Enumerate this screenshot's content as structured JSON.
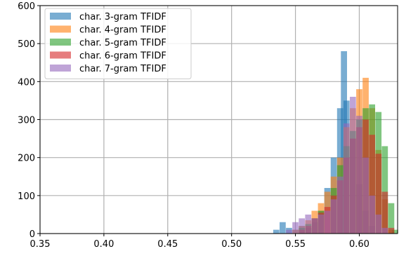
{
  "chart_data": {
    "type": "histogram",
    "title": "",
    "xlabel": "",
    "ylabel": "",
    "xlim": [
      0.35,
      0.63
    ],
    "ylim": [
      0,
      600
    ],
    "x_ticks": [
      "0.35",
      "0.40",
      "0.45",
      "0.50",
      "0.55",
      "0.60"
    ],
    "x_tick_values": [
      0.35,
      0.4,
      0.45,
      0.5,
      0.55,
      0.6
    ],
    "y_ticks": [
      "0",
      "100",
      "200",
      "300",
      "400",
      "500",
      "600"
    ],
    "y_tick_values": [
      0,
      100,
      200,
      300,
      400,
      500,
      600
    ],
    "grid": true,
    "legend_position": "top-left",
    "series": [
      {
        "name": "char. 3-gram TFIDF",
        "color": "#1f77b4",
        "bins": [
          [
            0.535,
            10
          ],
          [
            0.54,
            30
          ],
          [
            0.545,
            15
          ],
          [
            0.55,
            10
          ],
          [
            0.555,
            20
          ],
          [
            0.56,
            15
          ],
          [
            0.565,
            30
          ],
          [
            0.57,
            60
          ],
          [
            0.575,
            120
          ],
          [
            0.58,
            200
          ],
          [
            0.585,
            330
          ],
          [
            0.588,
            480
          ],
          [
            0.59,
            350
          ],
          [
            0.595,
            250
          ],
          [
            0.6,
            130
          ],
          [
            0.605,
            60
          ],
          [
            0.61,
            20
          ]
        ]
      },
      {
        "name": "char. 4-gram TFIDF",
        "color": "#ff7f0e",
        "bins": [
          [
            0.55,
            10
          ],
          [
            0.555,
            20
          ],
          [
            0.56,
            35
          ],
          [
            0.565,
            60
          ],
          [
            0.57,
            80
          ],
          [
            0.575,
            110
          ],
          [
            0.58,
            150
          ],
          [
            0.585,
            200
          ],
          [
            0.59,
            280
          ],
          [
            0.595,
            330
          ],
          [
            0.6,
            380
          ],
          [
            0.605,
            410
          ],
          [
            0.61,
            330
          ],
          [
            0.615,
            220
          ],
          [
            0.62,
            90
          ],
          [
            0.625,
            10
          ]
        ]
      },
      {
        "name": "char. 5-gram TFIDF",
        "color": "#2ca02c",
        "bins": [
          [
            0.555,
            15
          ],
          [
            0.56,
            25
          ],
          [
            0.565,
            40
          ],
          [
            0.57,
            60
          ],
          [
            0.58,
            120
          ],
          [
            0.585,
            180
          ],
          [
            0.59,
            230
          ],
          [
            0.595,
            270
          ],
          [
            0.6,
            300
          ],
          [
            0.605,
            330
          ],
          [
            0.61,
            340
          ],
          [
            0.615,
            320
          ],
          [
            0.62,
            230
          ],
          [
            0.625,
            80
          ],
          [
            0.628,
            10
          ]
        ]
      },
      {
        "name": "char. 6-gram TFIDF",
        "color": "#d62728",
        "bins": [
          [
            0.555,
            10
          ],
          [
            0.56,
            20
          ],
          [
            0.565,
            40
          ],
          [
            0.57,
            55
          ],
          [
            0.575,
            70
          ],
          [
            0.58,
            100
          ],
          [
            0.585,
            140
          ],
          [
            0.59,
            200
          ],
          [
            0.595,
            250
          ],
          [
            0.6,
            280
          ],
          [
            0.605,
            300
          ],
          [
            0.61,
            260
          ],
          [
            0.615,
            210
          ],
          [
            0.62,
            110
          ],
          [
            0.625,
            15
          ]
        ]
      },
      {
        "name": "char. 7-gram TFIDF",
        "color": "#9467bd",
        "bins": [
          [
            0.545,
            10
          ],
          [
            0.55,
            30
          ],
          [
            0.555,
            40
          ],
          [
            0.56,
            50
          ],
          [
            0.565,
            40
          ],
          [
            0.57,
            50
          ],
          [
            0.575,
            60
          ],
          [
            0.58,
            90
          ],
          [
            0.585,
            150
          ],
          [
            0.59,
            290
          ],
          [
            0.595,
            360
          ],
          [
            0.6,
            310
          ],
          [
            0.605,
            200
          ],
          [
            0.61,
            100
          ],
          [
            0.615,
            50
          ],
          [
            0.62,
            15
          ]
        ]
      }
    ]
  }
}
